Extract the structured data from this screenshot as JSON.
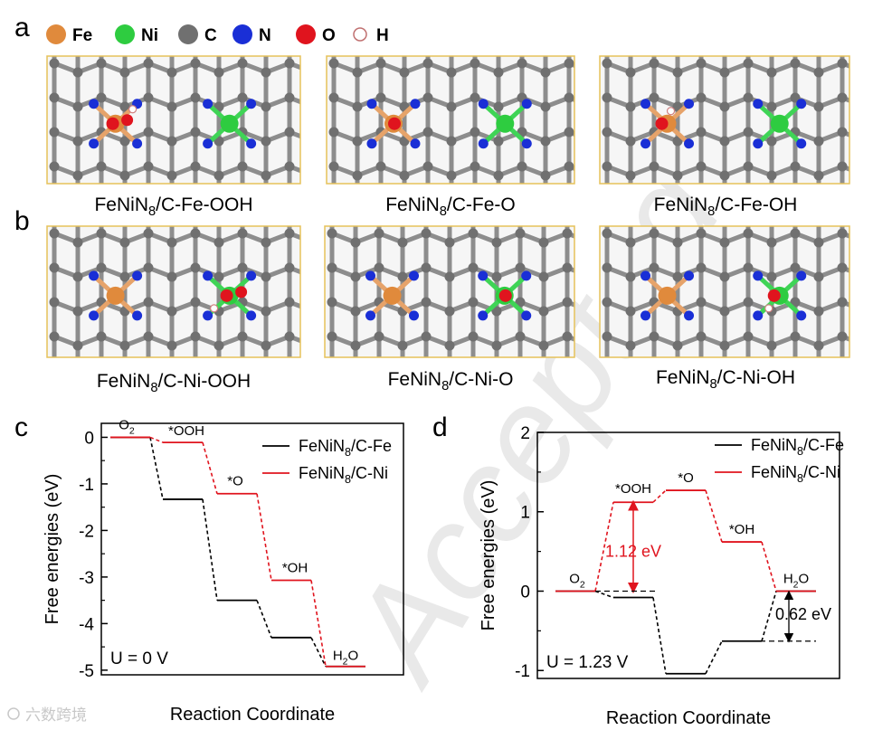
{
  "panels": {
    "a": "a",
    "b": "b",
    "c": "c",
    "d": "d"
  },
  "atom_legend": [
    {
      "symbol": "Fe",
      "color": "#e08a3c"
    },
    {
      "symbol": "Ni",
      "color": "#2ecc40"
    },
    {
      "symbol": "C",
      "color": "#707070"
    },
    {
      "symbol": "N",
      "color": "#1a2fd6"
    },
    {
      "symbol": "O",
      "color": "#e0141e"
    },
    {
      "symbol": "H",
      "color": "#ffffff"
    }
  ],
  "structures": {
    "row_a": [
      {
        "base": "FeNiN",
        "sub": "8",
        "rest": "/C-Fe-OOH"
      },
      {
        "base": "FeNiN",
        "sub": "8",
        "rest": "/C-Fe-O"
      },
      {
        "base": "FeNiN",
        "sub": "8",
        "rest": "/C-Fe-OH"
      }
    ],
    "row_b": [
      {
        "base": "FeNiN",
        "sub": "8",
        "rest": "/C-Ni-OOH"
      },
      {
        "base": "FeNiN",
        "sub": "8",
        "rest": "/C-Ni-O"
      },
      {
        "base": "FeNiN",
        "sub": "8",
        "rest": "/C-Ni-OH"
      }
    ]
  },
  "colors": {
    "fe_series": "#000000",
    "ni_series": "#e0141e",
    "frame": "#e6c25a"
  },
  "watermark": "Accepted",
  "footer_logo": "六数跨境",
  "chart_data": [
    {
      "type": "line",
      "panel": "c",
      "title": "",
      "xlabel": "Reaction Coordinate",
      "ylabel": "Free energies (eV)",
      "ylim": [
        -5.1,
        0.3
      ],
      "yticks": [
        "0",
        "-1",
        "-2",
        "-3",
        "-4",
        "-5"
      ],
      "condition": "U = 0 V",
      "steps": [
        "O2",
        "*OOH",
        "*O",
        "*OH",
        "H2O"
      ],
      "step_labels": [
        {
          "base": "O",
          "sub": "2"
        },
        {
          "base": "*OOH",
          "sub": ""
        },
        {
          "base": "*O",
          "sub": ""
        },
        {
          "base": "*OH",
          "sub": ""
        },
        {
          "base": "H",
          "sub": "2",
          "rest": "O"
        }
      ],
      "series": [
        {
          "name": "FeNiN8/C-Fe",
          "legend": {
            "base": "FeNiN",
            "sub": "8",
            "rest": "/C-Fe"
          },
          "values": [
            0,
            -1.33,
            -3.5,
            -4.3,
            -4.92
          ]
        },
        {
          "name": "FeNiN8/C-Ni",
          "legend": {
            "base": "FeNiN",
            "sub": "8",
            "rest": "/C-Ni"
          },
          "values": [
            0,
            -0.11,
            -1.21,
            -3.07,
            -4.92
          ]
        }
      ]
    },
    {
      "type": "line",
      "panel": "d",
      "title": "",
      "xlabel": "Reaction Coordinate",
      "ylabel": "Free energies (eV)",
      "ylim": [
        -1.1,
        2.0
      ],
      "yticks": [
        "2",
        "1",
        "0",
        "-1"
      ],
      "condition": "U = 1.23 V",
      "steps": [
        "O2",
        "*OOH",
        "*O",
        "*OH",
        "H2O"
      ],
      "step_labels": [
        {
          "base": "O",
          "sub": "2"
        },
        {
          "base": "*OOH",
          "sub": ""
        },
        {
          "base": "*O",
          "sub": ""
        },
        {
          "base": "*OH",
          "sub": ""
        },
        {
          "base": "H",
          "sub": "2",
          "rest": "O"
        }
      ],
      "series": [
        {
          "name": "FeNiN8/C-Fe",
          "legend": {
            "base": "FeNiN",
            "sub": "8",
            "rest": "/C-Fe"
          },
          "values": [
            0,
            -0.08,
            -1.04,
            -0.63,
            0
          ]
        },
        {
          "name": "FeNiN8/C-Ni",
          "legend": {
            "base": "FeNiN",
            "sub": "8",
            "rest": "/C-Ni"
          },
          "values": [
            0,
            1.12,
            1.27,
            0.62,
            0
          ]
        }
      ],
      "annotations": [
        "1.12 eV",
        "0.62 eV"
      ]
    }
  ]
}
